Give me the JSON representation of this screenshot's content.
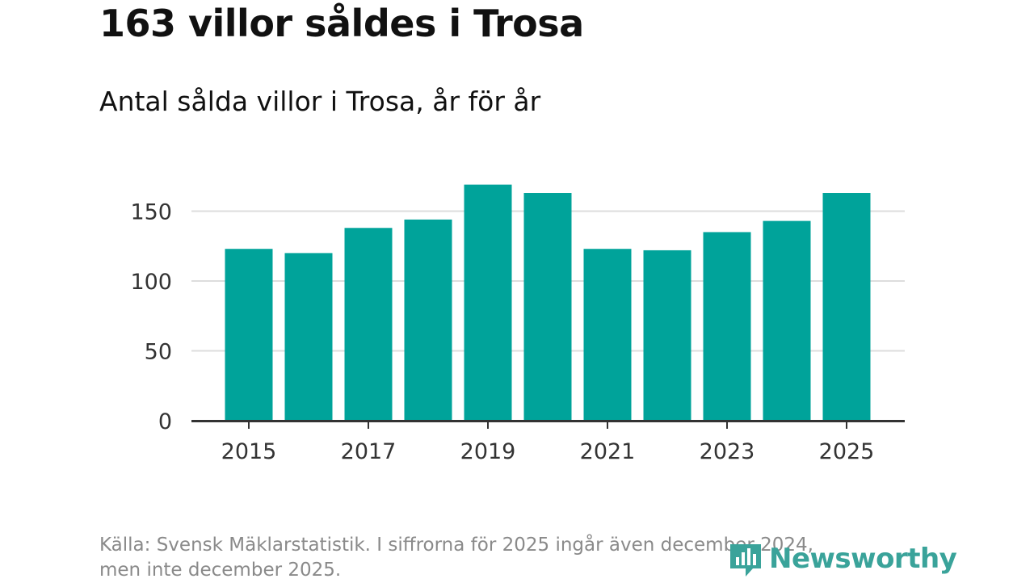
{
  "title": "163 villor såldes i Trosa",
  "subtitle": "Antal sålda villor i Trosa, år för år",
  "source_line1": "Källa: Svensk Mäklarstatistik. I siffrorna för 2025 ingår även december 2024,",
  "source_line2": "men inte december 2025.",
  "brand": "Newsworthy",
  "colors": {
    "bar": "#00a39a",
    "grid": "#dddddd",
    "axis": "#333333",
    "brand": "#3aa39a"
  },
  "chart_data": {
    "type": "bar",
    "title": "Antal sålda villor i Trosa, år för år",
    "categories": [
      "2015",
      "2016",
      "2017",
      "2018",
      "2019",
      "2020",
      "2021",
      "2022",
      "2023",
      "2024",
      "2025"
    ],
    "values": [
      123,
      120,
      138,
      144,
      169,
      163,
      123,
      122,
      135,
      143,
      163
    ],
    "xticks": [
      "2015",
      "2017",
      "2019",
      "2021",
      "2023",
      "2025"
    ],
    "yticks": [
      0,
      50,
      100,
      150
    ],
    "ylim": [
      0,
      175
    ],
    "xlabel": "",
    "ylabel": "",
    "grid": true
  }
}
